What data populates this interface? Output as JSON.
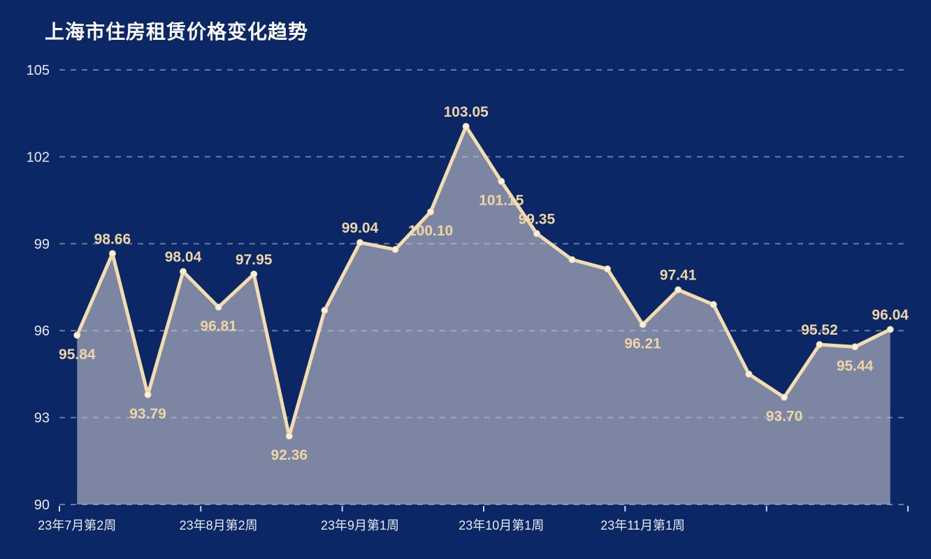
{
  "title": "上海市住房租赁价格变化趋势",
  "colors": {
    "background": "#0B2766",
    "title": "#FFFFFF",
    "line": "#F3DCB0",
    "area": "#8189A3",
    "marker_fill": "#FAF0DC",
    "marker_stroke": "#E9CFA2",
    "value_label": "#EFD5A6",
    "axis_label": "#E8EAF2",
    "grid": "#C8D0E4",
    "tick": "#CDD3E4"
  },
  "chart_data": {
    "type": "area",
    "title": "上海市住房租赁价格变化趋势",
    "ylim": [
      90,
      105
    ],
    "y_ticks": [
      105,
      102,
      99,
      96,
      93,
      90
    ],
    "grid": "dashed horizontal",
    "legend": "none",
    "x_tick_labels": [
      "23年7月第2周",
      "23年8月第2周",
      "23年9月第1周",
      "23年10月第1周",
      "23年11月第1周"
    ],
    "x_tick_label_indices": [
      0,
      4,
      8,
      12,
      16
    ],
    "x_axis_note": "weekly data, 24 points, axis ticks every 4 weeks",
    "points": [
      {
        "value": 95.84,
        "label": "95.84",
        "label_pos": "below"
      },
      {
        "value": 98.66,
        "label": "98.66",
        "label_pos": "above"
      },
      {
        "value": 93.79,
        "label": "93.79",
        "label_pos": "below"
      },
      {
        "value": 98.04,
        "label": "98.04",
        "label_pos": "above"
      },
      {
        "value": 96.81,
        "label": "96.81",
        "label_pos": "below"
      },
      {
        "value": 97.95,
        "label": "97.95",
        "label_pos": "above"
      },
      {
        "value": 92.36,
        "label": "92.36",
        "label_pos": "below"
      },
      {
        "value": 96.7,
        "label": "",
        "label_pos": ""
      },
      {
        "value": 99.04,
        "label": "99.04",
        "label_pos": "above"
      },
      {
        "value": 98.8,
        "label": "",
        "label_pos": ""
      },
      {
        "value": 100.1,
        "label": "100.10",
        "label_pos": "below"
      },
      {
        "value": 103.05,
        "label": "103.05",
        "label_pos": "above"
      },
      {
        "value": 101.15,
        "label": "101.15",
        "label_pos": "below"
      },
      {
        "value": 99.35,
        "label": "99.35",
        "label_pos": "above"
      },
      {
        "value": 98.45,
        "label": "",
        "label_pos": ""
      },
      {
        "value": 98.13,
        "label": "",
        "label_pos": ""
      },
      {
        "value": 96.21,
        "label": "96.21",
        "label_pos": "below"
      },
      {
        "value": 97.41,
        "label": "97.41",
        "label_pos": "above"
      },
      {
        "value": 96.9,
        "label": "",
        "label_pos": ""
      },
      {
        "value": 94.5,
        "label": "",
        "label_pos": ""
      },
      {
        "value": 93.7,
        "label": "93.70",
        "label_pos": "below"
      },
      {
        "value": 95.52,
        "label": "95.52",
        "label_pos": "above"
      },
      {
        "value": 95.44,
        "label": "95.44",
        "label_pos": "below"
      },
      {
        "value": 96.04,
        "label": "96.04",
        "label_pos": "above"
      }
    ]
  }
}
